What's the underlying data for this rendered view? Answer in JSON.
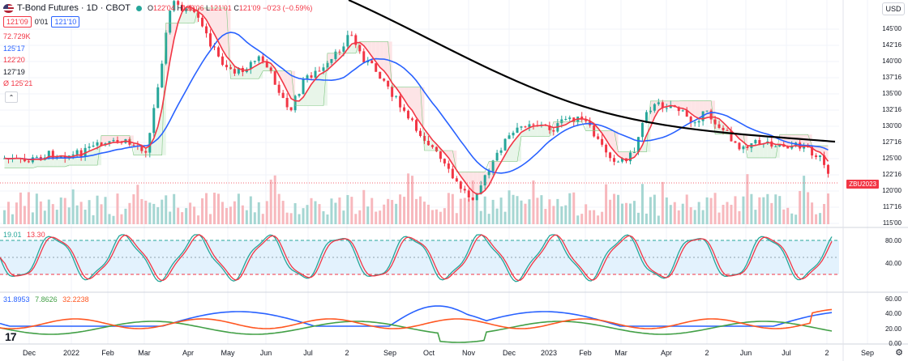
{
  "header": {
    "title": "T-Bond Futures · 1D · CBOT",
    "open_label": "O",
    "open": "122'04",
    "high_label": "H",
    "high": "122'06",
    "low_label": "L",
    "low": "121'01",
    "close_label": "C",
    "close": "121'09",
    "change": "−0'23 (−0.59%)"
  },
  "price_boxes": {
    "bid": "121'09",
    "spread": "0'01",
    "ask": "121'10"
  },
  "legend_values": [
    {
      "text": "72.729K",
      "color": "#f23645"
    },
    {
      "text": "125'17",
      "color": "#2962ff"
    },
    {
      "text": "122'20",
      "color": "#f23645"
    },
    {
      "text": "127'19",
      "color": "#131722"
    },
    {
      "text": "Ø  125'21",
      "color": "#f23645"
    }
  ],
  "currency": "USD",
  "symbol_badge": "ZBU2023",
  "price_axis": [
    "145'00",
    "142'16",
    "140'00",
    "137'16",
    "135'00",
    "132'16",
    "130'00",
    "127'16",
    "125'00",
    "122'16",
    "120'00",
    "117'16",
    "115'00"
  ],
  "stoch": {
    "k": "19.01",
    "d": "13.30",
    "axis": [
      "80.00",
      "40.00"
    ]
  },
  "dmi": {
    "v1": "31.8953",
    "v2": "7.8626",
    "v3": "32.2238",
    "axis": [
      "60.00",
      "40.00",
      "20.00",
      "0.00"
    ]
  },
  "x_axis": [
    "Dec",
    "2022",
    "Feb",
    "Mar",
    "Apr",
    "May",
    "Jun",
    "Jul",
    "2",
    "Sep",
    "Oct",
    "Nov",
    "Dec",
    "2023",
    "Feb",
    "Mar",
    "Apr",
    "2",
    "Jun",
    "Jul",
    "2",
    "Sep"
  ],
  "colors": {
    "up": "#26a69a",
    "down": "#f23645",
    "ma_fast": "#f23645",
    "ma_mid": "#2962ff",
    "ma_slow": "#000000"
  },
  "icons": {
    "collapse": "chevron-up-icon",
    "settings": "gear-icon",
    "logo": "tradingview-logo"
  }
}
